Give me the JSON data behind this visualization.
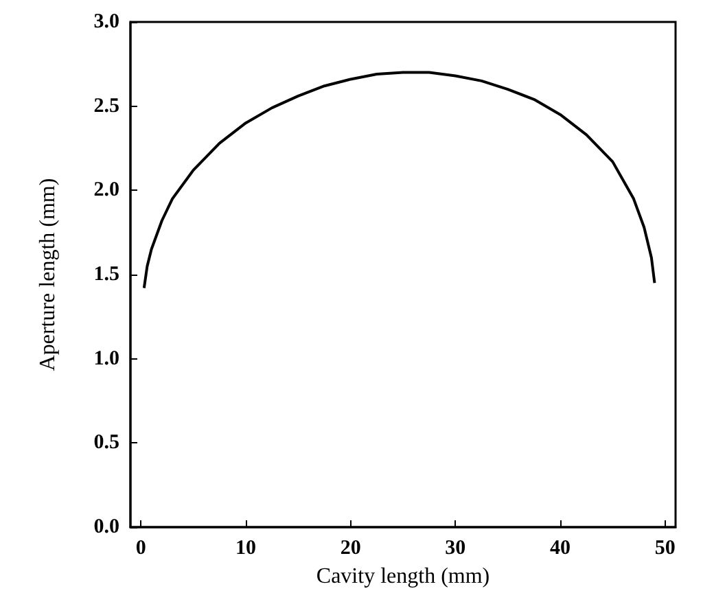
{
  "chart_data": {
    "type": "line",
    "xlabel": "Cavity length (mm)",
    "ylabel": "Aperture length (mm)",
    "x": [
      0.3,
      0.6,
      1,
      2,
      3,
      5,
      7.5,
      10,
      12.5,
      15,
      17.5,
      20,
      22.5,
      25,
      27.5,
      30,
      32.5,
      35,
      37.5,
      40,
      42.5,
      45,
      47,
      48,
      48.7,
      49
    ],
    "series": [
      {
        "color": "#000000",
        "values": [
          1.42,
          1.55,
          1.65,
          1.82,
          1.95,
          2.12,
          2.28,
          2.4,
          2.49,
          2.56,
          2.62,
          2.66,
          2.69,
          2.7,
          2.7,
          2.68,
          2.65,
          2.6,
          2.54,
          2.45,
          2.33,
          2.17,
          1.95,
          1.78,
          1.6,
          1.45
        ]
      }
    ],
    "xlim": [
      -1,
      51
    ],
    "xticks": [
      0,
      10,
      20,
      30,
      40,
      50
    ],
    "ylim": [
      0,
      3
    ],
    "yticks": [
      {
        "value": 0,
        "label": "0.0"
      },
      0.5,
      {
        "value": 1,
        "label": "1.0"
      },
      1.5,
      {
        "value": 2,
        "label": "2.0"
      },
      2.5,
      {
        "value": 3,
        "label": "3.0"
      }
    ],
    "marker": "none",
    "line_style": "solid"
  }
}
